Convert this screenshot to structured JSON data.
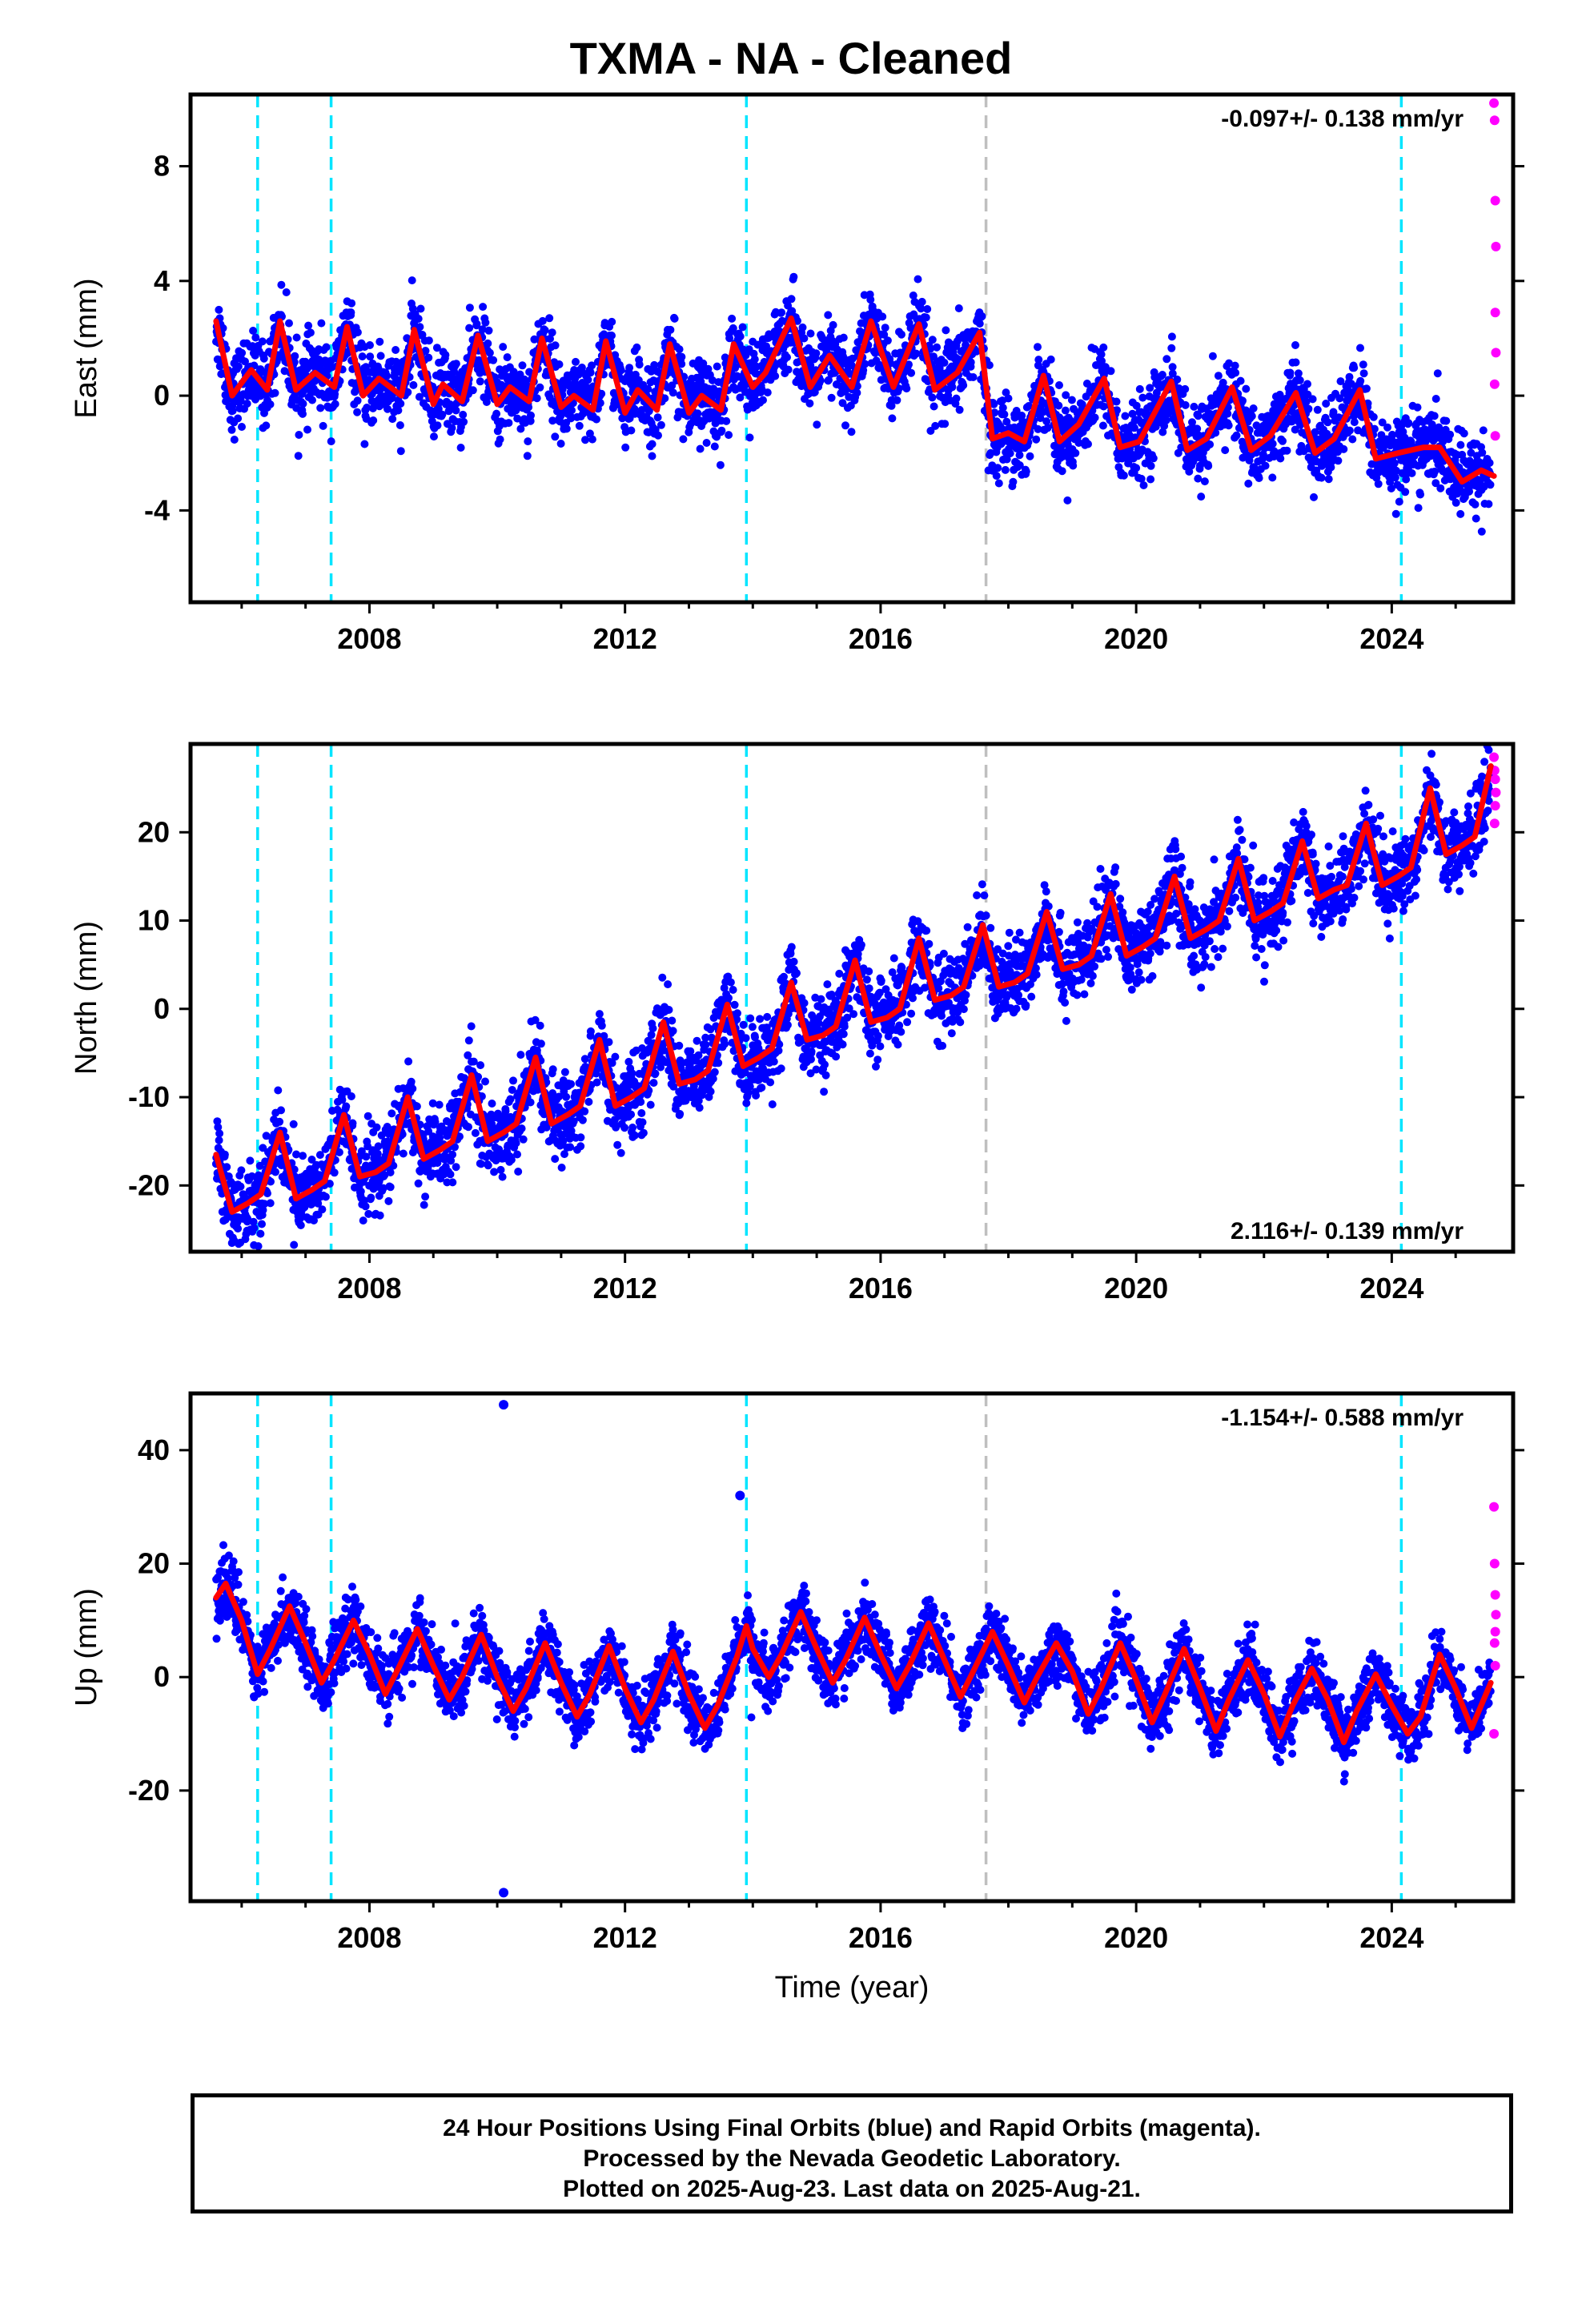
{
  "title": "TXMA  - NA - Cleaned",
  "xlabel": "Time (year)",
  "footer": {
    "line1": "24 Hour Positions Using Final Orbits (blue) and Rapid Orbits (magenta).",
    "line2": "Processed by the Nevada Geodetic Laboratory.",
    "line3": "Plotted on 2025-Aug-23. Last data on 2025-Aug-21."
  },
  "colors": {
    "final_orbits": "#0000ff",
    "rapid_orbits": "#ff00ff",
    "model": "#ff0000",
    "equipment_change": "#00e5ff",
    "other_event": "#bfbfbf"
  },
  "chart_data": [
    {
      "type": "scatter",
      "component": "East",
      "ylabel": "East (mm)",
      "xlim": [
        2005.2,
        2025.9
      ],
      "ylim": [
        -7.2,
        10.5
      ],
      "xticks": [
        2008,
        2012,
        2016,
        2020,
        2024
      ],
      "yticks": [
        -4,
        0,
        4,
        8
      ],
      "rate_label": "-0.097+/- 0.138 mm/yr",
      "rate_position": "top-right",
      "vlines_cyan": [
        2006.25,
        2007.4,
        2013.9,
        2024.15
      ],
      "vlines_gray": [
        2017.65
      ],
      "model_series": {
        "name": "model",
        "x": [
          2005.6,
          2005.85,
          2006.15,
          2006.4,
          2006.6,
          2006.85,
          2007.15,
          2007.45,
          2007.65,
          2007.9,
          2008.15,
          2008.5,
          2008.7,
          2009.0,
          2009.15,
          2009.45,
          2009.7,
          2010.0,
          2010.2,
          2010.5,
          2010.7,
          2011.0,
          2011.2,
          2011.5,
          2011.7,
          2012.0,
          2012.2,
          2012.5,
          2012.7,
          2013.0,
          2013.2,
          2013.5,
          2013.7,
          2014.0,
          2014.2,
          2014.6,
          2014.9,
          2015.2,
          2015.55,
          2015.85,
          2016.2,
          2016.6,
          2016.85,
          2017.2,
          2017.55,
          2017.75,
          2018.0,
          2018.25,
          2018.55,
          2018.8,
          2019.1,
          2019.5,
          2019.75,
          2020.05,
          2020.55,
          2020.8,
          2021.1,
          2021.5,
          2021.8,
          2022.1,
          2022.5,
          2022.8,
          2023.1,
          2023.5,
          2023.75,
          2024.1,
          2024.5,
          2024.75,
          2025.1,
          2025.4,
          2025.6
        ],
        "y": [
          2.6,
          0.0,
          0.9,
          0.2,
          2.6,
          0.2,
          0.8,
          0.3,
          2.4,
          0.0,
          0.6,
          0.0,
          2.3,
          -0.3,
          0.4,
          -0.2,
          2.1,
          -0.3,
          0.3,
          -0.2,
          2.0,
          -0.4,
          0.0,
          -0.5,
          1.9,
          -0.6,
          0.2,
          -0.5,
          1.8,
          -0.6,
          0.0,
          -0.5,
          1.8,
          0.3,
          0.8,
          2.7,
          0.3,
          1.4,
          0.3,
          2.6,
          0.3,
          2.5,
          0.2,
          0.8,
          2.2,
          -1.5,
          -1.3,
          -1.6,
          0.7,
          -1.6,
          -1.0,
          0.6,
          -1.8,
          -1.6,
          0.5,
          -1.9,
          -1.5,
          0.3,
          -1.9,
          -1.4,
          0.1,
          -2.0,
          -1.5,
          0.2,
          -2.2,
          -2.0,
          -1.8,
          -1.8,
          -3.0,
          -2.6,
          -2.8
        ]
      },
      "final_orbit_points": "dense daily solutions (~7000 points) scattering about the model within roughly ±3 mm",
      "rapid_orbit_points": {
        "x": [
          2025.6,
          2025.61,
          2025.62,
          2025.63,
          2025.62,
          2025.63,
          2025.61,
          2025.62
        ],
        "y": [
          10.2,
          9.6,
          6.8,
          5.2,
          2.9,
          1.5,
          0.4,
          -1.4
        ]
      }
    },
    {
      "type": "scatter",
      "component": "North",
      "ylabel": "North (mm)",
      "xlim": [
        2005.2,
        2025.9
      ],
      "ylim": [
        -27.5,
        30
      ],
      "xticks": [
        2008,
        2012,
        2016,
        2020,
        2024
      ],
      "yticks": [
        -20,
        -10,
        0,
        10,
        20
      ],
      "rate_label": "2.116+/- 0.139 mm/yr",
      "rate_position": "bottom-right",
      "vlines_cyan": [
        2006.25,
        2007.4,
        2013.9,
        2024.15
      ],
      "vlines_gray": [
        2017.65
      ],
      "model_series": {
        "name": "model",
        "x": [
          2005.6,
          2005.85,
          2006.1,
          2006.3,
          2006.6,
          2006.85,
          2007.1,
          2007.3,
          2007.6,
          2007.85,
          2008.1,
          2008.3,
          2008.6,
          2008.85,
          2009.1,
          2009.3,
          2009.6,
          2009.85,
          2010.1,
          2010.3,
          2010.6,
          2010.85,
          2011.1,
          2011.3,
          2011.6,
          2011.85,
          2012.1,
          2012.3,
          2012.6,
          2012.85,
          2013.1,
          2013.3,
          2013.6,
          2013.85,
          2014.1,
          2014.3,
          2014.6,
          2014.85,
          2015.1,
          2015.3,
          2015.6,
          2015.85,
          2016.1,
          2016.3,
          2016.6,
          2016.85,
          2017.1,
          2017.3,
          2017.6,
          2017.85,
          2018.1,
          2018.3,
          2018.6,
          2018.85,
          2019.1,
          2019.3,
          2019.6,
          2019.85,
          2020.1,
          2020.3,
          2020.6,
          2020.85,
          2021.1,
          2021.3,
          2021.6,
          2021.85,
          2022.1,
          2022.3,
          2022.6,
          2022.85,
          2023.1,
          2023.3,
          2023.6,
          2023.85,
          2024.1,
          2024.3,
          2024.6,
          2024.85,
          2025.1,
          2025.3,
          2025.55
        ],
        "y": [
          -16.5,
          -23.0,
          -22.0,
          -21.0,
          -14.0,
          -21.5,
          -20.5,
          -19.5,
          -12.0,
          -19.0,
          -18.5,
          -17.5,
          -10.0,
          -17.0,
          -16.0,
          -15.0,
          -7.5,
          -15.0,
          -14.0,
          -13.0,
          -5.5,
          -13.0,
          -12.0,
          -11.0,
          -3.5,
          -11.0,
          -10.0,
          -9.0,
          -1.5,
          -8.5,
          -8.0,
          -7.0,
          0.5,
          -6.5,
          -5.5,
          -4.5,
          3.0,
          -3.5,
          -3.0,
          -2.0,
          5.5,
          -1.5,
          -1.0,
          0.0,
          8.0,
          1.0,
          1.5,
          2.5,
          9.5,
          2.5,
          3.0,
          4.0,
          11.0,
          4.5,
          5.0,
          6.0,
          13.0,
          6.0,
          7.0,
          8.0,
          15.0,
          8.0,
          9.0,
          10.0,
          17.0,
          10.0,
          11.0,
          12.0,
          19.0,
          12.5,
          13.5,
          14.0,
          21.0,
          14.0,
          15.0,
          16.0,
          25.0,
          17.5,
          18.5,
          19.5,
          27.5
        ]
      },
      "final_orbit_points": "dense daily solutions (~7000 points) scattering about the model within roughly ±3 mm",
      "rapid_orbit_points": {
        "x": [
          2025.6,
          2025.61,
          2025.62,
          2025.63,
          2025.62,
          2025.61
        ],
        "y": [
          28.5,
          27.0,
          26.0,
          24.5,
          23.0,
          21.0
        ]
      }
    },
    {
      "type": "scatter",
      "component": "Up",
      "ylabel": "Up (mm)",
      "xlim": [
        2005.2,
        2025.9
      ],
      "ylim": [
        -39.5,
        50
      ],
      "xticks": [
        2008,
        2012,
        2016,
        2020,
        2024
      ],
      "yticks": [
        -20,
        0,
        20,
        40
      ],
      "rate_label": "-1.154+/- 0.588 mm/yr",
      "rate_position": "top-right",
      "vlines_cyan": [
        2006.25,
        2007.4,
        2013.9,
        2024.15
      ],
      "vlines_gray": [
        2017.65
      ],
      "model_series": {
        "name": "model",
        "x": [
          2005.6,
          2005.75,
          2006.0,
          2006.25,
          2006.45,
          2006.75,
          2007.0,
          2007.25,
          2007.45,
          2007.75,
          2008.0,
          2008.25,
          2008.45,
          2008.75,
          2009.0,
          2009.25,
          2009.45,
          2009.75,
          2010.0,
          2010.25,
          2010.45,
          2010.75,
          2011.0,
          2011.25,
          2011.45,
          2011.75,
          2012.0,
          2012.25,
          2012.45,
          2012.75,
          2013.0,
          2013.25,
          2013.45,
          2013.75,
          2013.9,
          2014.0,
          2014.25,
          2014.45,
          2014.75,
          2015.0,
          2015.25,
          2015.45,
          2015.75,
          2016.0,
          2016.25,
          2016.45,
          2016.75,
          2017.0,
          2017.25,
          2017.45,
          2017.75,
          2018.0,
          2018.25,
          2018.45,
          2018.75,
          2019.0,
          2019.25,
          2019.45,
          2019.75,
          2020.0,
          2020.25,
          2020.45,
          2020.75,
          2021.0,
          2021.25,
          2021.45,
          2021.75,
          2022.0,
          2022.25,
          2022.45,
          2022.75,
          2023.0,
          2023.25,
          2023.45,
          2023.75,
          2024.0,
          2024.25,
          2024.45,
          2024.75,
          2025.0,
          2025.25,
          2025.55
        ],
        "y": [
          14.0,
          16.5,
          10.0,
          0.5,
          5.0,
          12.5,
          6.0,
          -1.0,
          3.0,
          10.0,
          4.0,
          -3.0,
          1.5,
          8.5,
          2.0,
          -4.0,
          0.0,
          7.5,
          0.0,
          -6.0,
          -2.0,
          6.0,
          -1.0,
          -7.0,
          -3.0,
          5.5,
          -2.0,
          -8.0,
          -4.0,
          4.5,
          -3.0,
          -9.0,
          -5.0,
          3.5,
          9.0,
          5.0,
          0.0,
          4.0,
          11.5,
          5.0,
          -1.0,
          3.0,
          10.5,
          4.0,
          -2.0,
          2.0,
          9.5,
          3.0,
          -3.5,
          1.0,
          8.0,
          2.0,
          -4.5,
          0.0,
          6.0,
          1.0,
          -6.5,
          -2.0,
          6.0,
          -0.5,
          -8.0,
          -3.0,
          5.0,
          -2.0,
          -9.5,
          -4.0,
          3.0,
          -3.0,
          -10.5,
          -5.0,
          1.5,
          -4.0,
          -11.5,
          -6.0,
          0.5,
          -5.0,
          -10.0,
          -7.0,
          4.0,
          -2.0,
          -9.0,
          -1.0
        ]
      },
      "final_orbit_points": "dense daily solutions (~7000 points) scattering about the model within roughly ±10 mm",
      "final_orbit_outliers": {
        "x": [
          2010.1,
          2010.1,
          2013.8
        ],
        "y": [
          48.0,
          -38.0,
          32.0
        ]
      },
      "rapid_orbit_points": {
        "x": [
          2025.6,
          2025.61,
          2025.62,
          2025.63,
          2025.62,
          2025.61,
          2025.62,
          2025.6
        ],
        "y": [
          30.0,
          20.0,
          14.5,
          11.0,
          8.0,
          6.0,
          2.0,
          -10.0
        ]
      }
    }
  ]
}
